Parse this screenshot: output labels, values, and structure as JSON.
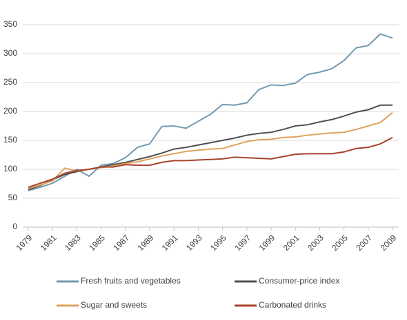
{
  "chart_data": {
    "type": "line",
    "x": [
      1979,
      1980,
      1981,
      1982,
      1983,
      1984,
      1985,
      1986,
      1987,
      1988,
      1989,
      1990,
      1991,
      1992,
      1993,
      1994,
      1995,
      1996,
      1997,
      1998,
      1999,
      2000,
      2001,
      2002,
      2003,
      2004,
      2005,
      2006,
      2007,
      2008,
      2009
    ],
    "xlim": [
      1979,
      2009
    ],
    "xticks": [
      1979,
      1981,
      1983,
      1985,
      1987,
      1989,
      1991,
      1993,
      1995,
      1997,
      1999,
      2001,
      2003,
      2005,
      2007,
      2009
    ],
    "ylim": [
      0,
      350
    ],
    "yticks": [
      0,
      50,
      100,
      150,
      200,
      250,
      300,
      350
    ],
    "grid": true,
    "legend": "bottom",
    "series": [
      {
        "name": "Fresh fruits and vegetables",
        "color": "#7399b0",
        "values": [
          63,
          69,
          76,
          88,
          100,
          88,
          107,
          110,
          120,
          138,
          144,
          174,
          175,
          171,
          183,
          195,
          212,
          211,
          215,
          238,
          246,
          245,
          249,
          264,
          268,
          274,
          288,
          310,
          314,
          334,
          327
        ]
      },
      {
        "name": "Consumer-price index",
        "color": "#505050",
        "values": [
          65,
          72,
          82,
          91,
          96,
          100,
          104,
          108,
          112,
          117,
          122,
          128,
          135,
          138,
          142,
          146,
          150,
          154,
          159,
          162,
          164,
          169,
          175,
          177,
          182,
          186,
          192,
          199,
          203,
          211,
          211
        ]
      },
      {
        "name": "Sugar and sweets",
        "color": "#e0a15e",
        "values": [
          67,
          73,
          80,
          102,
          97,
          100,
          103,
          106,
          110,
          113,
          118,
          123,
          127,
          131,
          133,
          135,
          136,
          142,
          148,
          151,
          152,
          155,
          156,
          159,
          161,
          163,
          164,
          169,
          175,
          181,
          198
        ]
      },
      {
        "name": "Carbonated drinks",
        "color": "#a8432c",
        "values": [
          69,
          76,
          83,
          93,
          98,
          100,
          104,
          104,
          108,
          107,
          107,
          112,
          115,
          115,
          116,
          117,
          118,
          121,
          120,
          119,
          118,
          122,
          126,
          127,
          127,
          127,
          130,
          136,
          138,
          144,
          155
        ]
      }
    ]
  }
}
